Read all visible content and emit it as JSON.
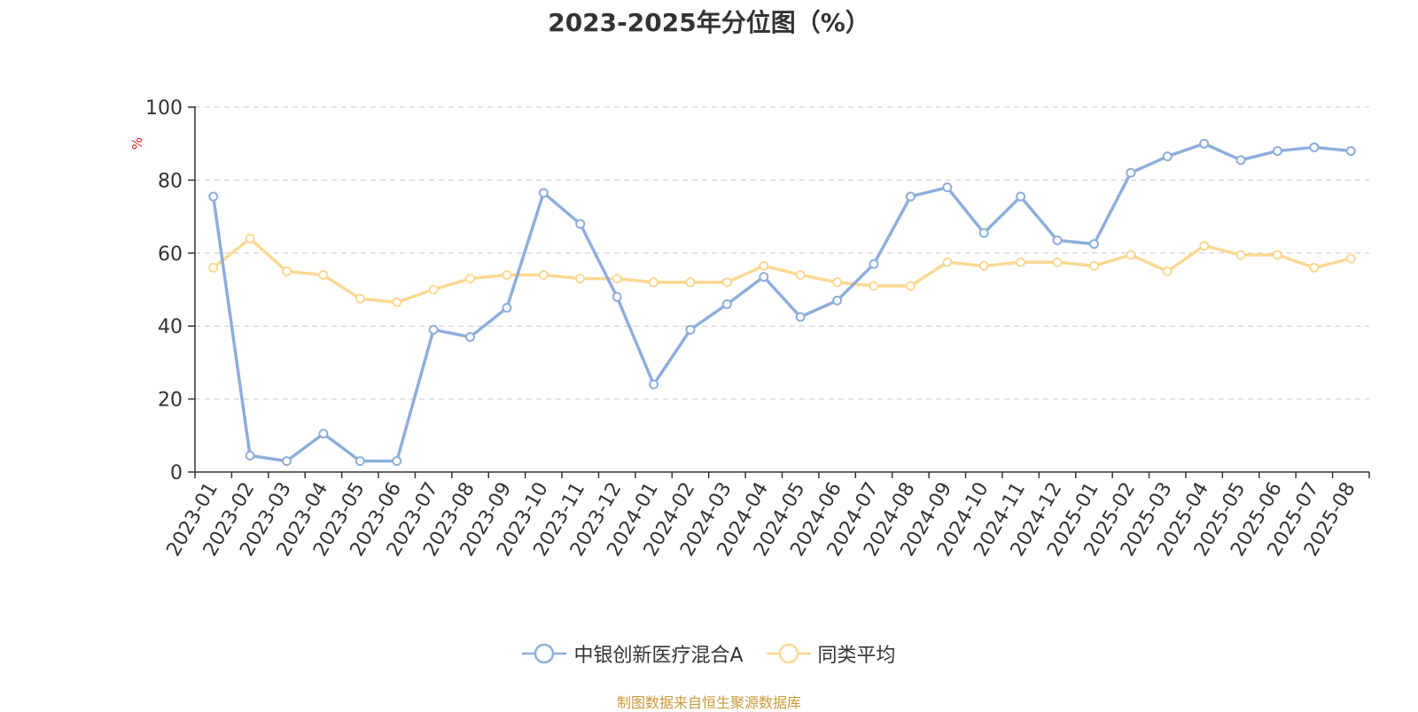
{
  "colors": {
    "series1": "#8eaedb",
    "series2": "#fcd893",
    "axis": "#333333",
    "grid": "#cccccc",
    "unit": "#e02020",
    "source": "#c99a3c"
  },
  "footer": {
    "source": "制图数据来自恒生聚源数据库"
  },
  "chart_data": {
    "type": "line",
    "title": "2023-2025年分位图（%）",
    "ylabel": "%",
    "ylim": [
      0,
      100
    ],
    "yticks": [
      0,
      20,
      40,
      60,
      80,
      100
    ],
    "grid": true,
    "legend_position": "bottom",
    "categories": [
      "2023-01",
      "2023-02",
      "2023-03",
      "2023-04",
      "2023-05",
      "2023-06",
      "2023-07",
      "2023-08",
      "2023-09",
      "2023-10",
      "2023-11",
      "2023-12",
      "2024-01",
      "2024-02",
      "2024-03",
      "2024-04",
      "2024-05",
      "2024-06",
      "2024-07",
      "2024-08",
      "2024-09",
      "2024-10",
      "2024-11",
      "2024-12",
      "2025-01",
      "2025-02",
      "2025-03",
      "2025-04",
      "2025-05",
      "2025-06",
      "2025-07",
      "2025-08"
    ],
    "series": [
      {
        "name": "中银创新医疗混合A",
        "values": [
          75.5,
          4.5,
          3,
          10.5,
          3,
          3,
          39,
          37,
          45,
          76.5,
          68,
          48,
          24,
          39,
          46,
          53.5,
          42.5,
          47,
          57,
          75.5,
          78,
          65.5,
          75.5,
          63.5,
          62.5,
          82,
          86.5,
          90,
          85.5,
          88,
          89,
          88
        ]
      },
      {
        "name": "同类平均",
        "values": [
          56,
          64,
          55,
          54,
          47.5,
          46.5,
          50,
          53,
          54,
          54,
          53,
          53,
          52,
          52,
          52,
          56.5,
          54,
          52,
          51,
          51,
          57.5,
          56.5,
          57.5,
          57.5,
          56.5,
          59.5,
          55,
          62,
          59.5,
          59.5,
          56,
          58.5
        ]
      }
    ]
  }
}
